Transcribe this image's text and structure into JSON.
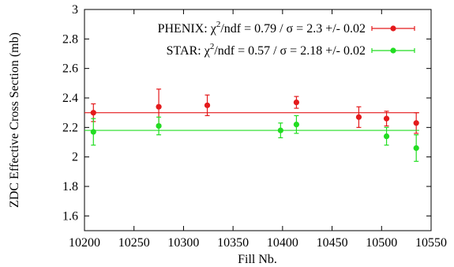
{
  "chart_data": {
    "type": "scatter",
    "xlabel": "Fill Nb.",
    "ylabel": "ZDC Effective Cross Section (mb)",
    "xlim": [
      10200,
      10550
    ],
    "ylim": [
      1.5,
      3.0
    ],
    "xticks": [
      "10200",
      "10250",
      "10300",
      "10350",
      "10400",
      "10450",
      "10500",
      "10550"
    ],
    "yticks": [
      "1.6",
      "1.8",
      "2",
      "2.2",
      "2.4",
      "2.6",
      "2.8",
      "3"
    ],
    "legend_placement": "top-right",
    "series": [
      {
        "name": "PHENIX",
        "legend_prefix": "PHENIX: ",
        "legend_chi": "χ",
        "legend_exp": "2",
        "legend_suffix": "/ndf = 0.79 / σ = 2.3 +/- 0.02",
        "color": "#e41a1c",
        "fit": 2.3,
        "points": [
          {
            "x": 10209,
            "y": 2.3,
            "err": 0.06
          },
          {
            "x": 10275,
            "y": 2.34,
            "err": 0.12
          },
          {
            "x": 10324,
            "y": 2.35,
            "err": 0.07
          },
          {
            "x": 10414,
            "y": 2.37,
            "err": 0.04
          },
          {
            "x": 10477,
            "y": 2.27,
            "err": 0.07
          },
          {
            "x": 10505,
            "y": 2.26,
            "err": 0.05
          },
          {
            "x": 10535,
            "y": 2.23,
            "err": 0.07
          }
        ]
      },
      {
        "name": "STAR",
        "legend_prefix": "STAR: ",
        "legend_chi": "χ",
        "legend_exp": "2",
        "legend_suffix": "/ndf = 0.57 / σ = 2.18 +/- 0.02",
        "color": "#22dd22",
        "fit": 2.18,
        "points": [
          {
            "x": 10209,
            "y": 2.17,
            "err": 0.09
          },
          {
            "x": 10275,
            "y": 2.21,
            "err": 0.06
          },
          {
            "x": 10398,
            "y": 2.18,
            "err": 0.05
          },
          {
            "x": 10414,
            "y": 2.22,
            "err": 0.06
          },
          {
            "x": 10505,
            "y": 2.14,
            "err": 0.06
          },
          {
            "x": 10535,
            "y": 2.06,
            "err": 0.09
          }
        ]
      }
    ]
  }
}
